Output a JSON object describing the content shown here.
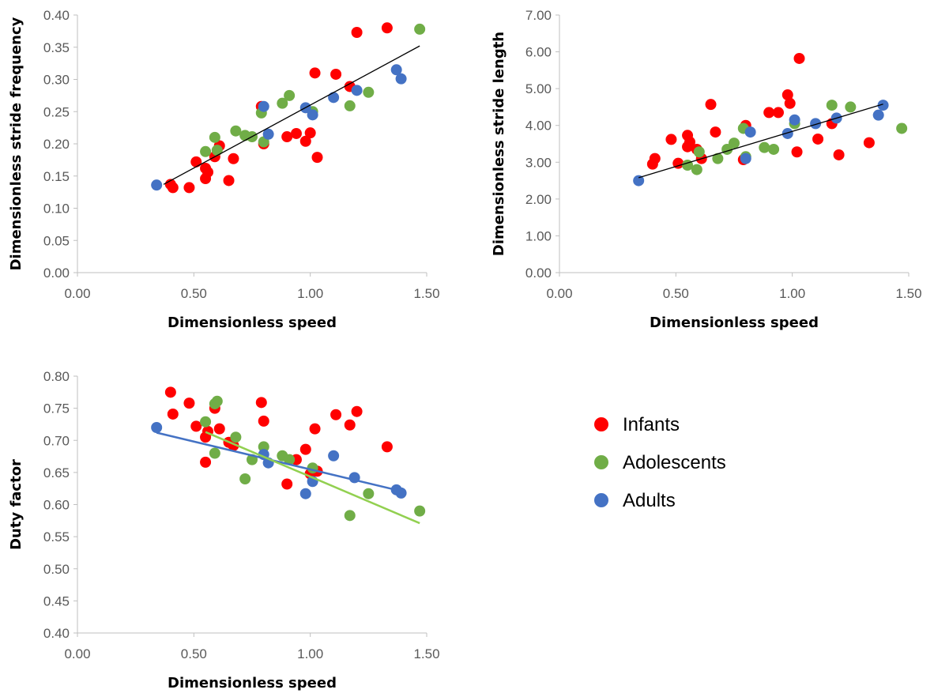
{
  "legend": [
    {
      "label": "Infants",
      "color": "#FF0000",
      "icon": "circle-marker"
    },
    {
      "label": "Adolescents",
      "color": "#70AD47",
      "icon": "circle-marker"
    },
    {
      "label": "Adults",
      "color": "#4472C4",
      "icon": "circle-marker"
    }
  ],
  "chart_data": [
    {
      "type": "scatter",
      "xlabel": "Dimensionless speed",
      "ylabel": "Dimensionless stride frequency",
      "xlim": [
        0,
        1.5
      ],
      "ylim": [
        0,
        0.4
      ],
      "xticks": [
        "0.00",
        "0.50",
        "1.00",
        "1.50"
      ],
      "yticks": [
        "0.00",
        "0.05",
        "0.10",
        "0.15",
        "0.20",
        "0.25",
        "0.30",
        "0.35",
        "0.40"
      ],
      "grid": false,
      "series": [
        {
          "name": "Infants",
          "color": "#FF0000",
          "points": [
            [
              0.4,
              0.137
            ],
            [
              0.41,
              0.132
            ],
            [
              0.48,
              0.132
            ],
            [
              0.51,
              0.172
            ],
            [
              0.55,
              0.146
            ],
            [
              0.55,
              0.162
            ],
            [
              0.56,
              0.156
            ],
            [
              0.59,
              0.18
            ],
            [
              0.61,
              0.197
            ],
            [
              0.65,
              0.143
            ],
            [
              0.67,
              0.177
            ],
            [
              0.79,
              0.258
            ],
            [
              0.8,
              0.2
            ],
            [
              0.9,
              0.211
            ],
            [
              0.94,
              0.216
            ],
            [
              0.98,
              0.204
            ],
            [
              1.0,
              0.217
            ],
            [
              1.02,
              0.31
            ],
            [
              1.03,
              0.179
            ],
            [
              1.11,
              0.308
            ],
            [
              1.17,
              0.289
            ],
            [
              1.2,
              0.373
            ],
            [
              1.33,
              0.38
            ]
          ]
        },
        {
          "name": "Adolescents",
          "color": "#70AD47",
          "points": [
            [
              0.55,
              0.188
            ],
            [
              0.59,
              0.21
            ],
            [
              0.6,
              0.19
            ],
            [
              0.68,
              0.22
            ],
            [
              0.72,
              0.213
            ],
            [
              0.75,
              0.211
            ],
            [
              0.79,
              0.248
            ],
            [
              0.8,
              0.203
            ],
            [
              0.88,
              0.263
            ],
            [
              0.91,
              0.275
            ],
            [
              1.01,
              0.25
            ],
            [
              1.17,
              0.259
            ],
            [
              1.25,
              0.28
            ],
            [
              1.47,
              0.378
            ]
          ]
        },
        {
          "name": "Adults",
          "color": "#4472C4",
          "points": [
            [
              0.34,
              0.136
            ],
            [
              0.8,
              0.258
            ],
            [
              0.82,
              0.215
            ],
            [
              0.98,
              0.256
            ],
            [
              1.01,
              0.245
            ],
            [
              1.1,
              0.272
            ],
            [
              1.2,
              0.283
            ],
            [
              1.37,
              0.315
            ],
            [
              1.39,
              0.301
            ]
          ]
        }
      ],
      "trendlines": [
        {
          "color": "#000000",
          "x": [
            0.37,
            1.47
          ],
          "y": [
            0.137,
            0.352
          ]
        }
      ]
    },
    {
      "type": "scatter",
      "xlabel": "Dimensionless speed",
      "ylabel": "Dimensionless stride length",
      "xlim": [
        0,
        1.5
      ],
      "ylim": [
        0,
        7
      ],
      "xticks": [
        "0.00",
        "0.50",
        "1.00",
        "1.50"
      ],
      "yticks": [
        "0.00",
        "1.00",
        "2.00",
        "3.00",
        "4.00",
        "5.00",
        "6.00",
        "7.00"
      ],
      "grid": false,
      "series": [
        {
          "name": "Infants",
          "color": "#FF0000",
          "points": [
            [
              0.4,
              2.95
            ],
            [
              0.41,
              3.1
            ],
            [
              0.48,
              3.62
            ],
            [
              0.51,
              2.97
            ],
            [
              0.55,
              3.42
            ],
            [
              0.55,
              3.73
            ],
            [
              0.56,
              3.55
            ],
            [
              0.59,
              3.35
            ],
            [
              0.61,
              3.1
            ],
            [
              0.65,
              4.57
            ],
            [
              0.67,
              3.82
            ],
            [
              0.79,
              3.07
            ],
            [
              0.8,
              4.0
            ],
            [
              0.9,
              4.35
            ],
            [
              0.94,
              4.35
            ],
            [
              0.98,
              4.83
            ],
            [
              0.99,
              4.6
            ],
            [
              1.03,
              5.82
            ],
            [
              1.02,
              3.28
            ],
            [
              1.11,
              3.63
            ],
            [
              1.17,
              4.05
            ],
            [
              1.2,
              3.2
            ],
            [
              1.33,
              3.53
            ]
          ]
        },
        {
          "name": "Adolescents",
          "color": "#70AD47",
          "points": [
            [
              0.55,
              2.92
            ],
            [
              0.59,
              2.8
            ],
            [
              0.6,
              3.28
            ],
            [
              0.68,
              3.1
            ],
            [
              0.72,
              3.35
            ],
            [
              0.75,
              3.52
            ],
            [
              0.79,
              3.92
            ],
            [
              0.8,
              3.15
            ],
            [
              0.88,
              3.4
            ],
            [
              0.92,
              3.35
            ],
            [
              1.01,
              4.05
            ],
            [
              1.17,
              4.55
            ],
            [
              1.25,
              4.5
            ],
            [
              1.47,
              3.92
            ]
          ]
        },
        {
          "name": "Adults",
          "color": "#4472C4",
          "points": [
            [
              0.34,
              2.5
            ],
            [
              0.8,
              3.1
            ],
            [
              0.82,
              3.82
            ],
            [
              0.98,
              3.78
            ],
            [
              1.01,
              4.15
            ],
            [
              1.1,
              4.05
            ],
            [
              1.19,
              4.2
            ],
            [
              1.37,
              4.28
            ],
            [
              1.39,
              4.55
            ]
          ]
        }
      ],
      "trendlines": [
        {
          "color": "#000000",
          "x": [
            0.34,
            1.39
          ],
          "y": [
            2.58,
            4.58
          ]
        }
      ]
    },
    {
      "type": "scatter",
      "xlabel": "Dimensionless speed",
      "ylabel": "Duty factor",
      "xlim": [
        0,
        1.5
      ],
      "ylim": [
        0.4,
        0.8
      ],
      "xticks": [
        "0.00",
        "0.50",
        "1.00",
        "1.50"
      ],
      "yticks": [
        "0.40",
        "0.45",
        "0.50",
        "0.55",
        "0.60",
        "0.65",
        "0.70",
        "0.75",
        "0.80"
      ],
      "grid": false,
      "series": [
        {
          "name": "Infants",
          "color": "#FF0000",
          "points": [
            [
              0.4,
              0.775
            ],
            [
              0.41,
              0.741
            ],
            [
              0.48,
              0.758
            ],
            [
              0.51,
              0.722
            ],
            [
              0.55,
              0.705
            ],
            [
              0.55,
              0.666
            ],
            [
              0.56,
              0.714
            ],
            [
              0.59,
              0.75
            ],
            [
              0.61,
              0.718
            ],
            [
              0.65,
              0.697
            ],
            [
              0.67,
              0.692
            ],
            [
              0.79,
              0.759
            ],
            [
              0.8,
              0.73
            ],
            [
              0.9,
              0.632
            ],
            [
              0.94,
              0.67
            ],
            [
              0.98,
              0.686
            ],
            [
              1.0,
              0.648
            ],
            [
              1.02,
              0.718
            ],
            [
              1.03,
              0.652
            ],
            [
              1.11,
              0.74
            ],
            [
              1.17,
              0.724
            ],
            [
              1.2,
              0.745
            ],
            [
              1.33,
              0.69
            ]
          ]
        },
        {
          "name": "Adolescents",
          "color": "#70AD47",
          "points": [
            [
              0.55,
              0.729
            ],
            [
              0.59,
              0.757
            ],
            [
              0.6,
              0.761
            ],
            [
              0.59,
              0.68
            ],
            [
              0.68,
              0.705
            ],
            [
              0.72,
              0.64
            ],
            [
              0.75,
              0.67
            ],
            [
              0.8,
              0.69
            ],
            [
              0.88,
              0.676
            ],
            [
              0.91,
              0.67
            ],
            [
              1.01,
              0.657
            ],
            [
              1.17,
              0.583
            ],
            [
              1.25,
              0.617
            ],
            [
              1.47,
              0.59
            ]
          ]
        },
        {
          "name": "Adults",
          "color": "#4472C4",
          "points": [
            [
              0.34,
              0.72
            ],
            [
              0.8,
              0.678
            ],
            [
              0.82,
              0.665
            ],
            [
              0.98,
              0.617
            ],
            [
              1.01,
              0.636
            ],
            [
              1.1,
              0.676
            ],
            [
              1.19,
              0.642
            ],
            [
              1.37,
              0.623
            ],
            [
              1.39,
              0.618
            ]
          ]
        }
      ],
      "trendlines": [
        {
          "color": "#4472C4",
          "x": [
            0.34,
            1.39
          ],
          "y": [
            0.712,
            0.621
          ]
        },
        {
          "color": "#92D050",
          "x": [
            0.55,
            1.47
          ],
          "y": [
            0.713,
            0.571
          ]
        }
      ]
    }
  ]
}
